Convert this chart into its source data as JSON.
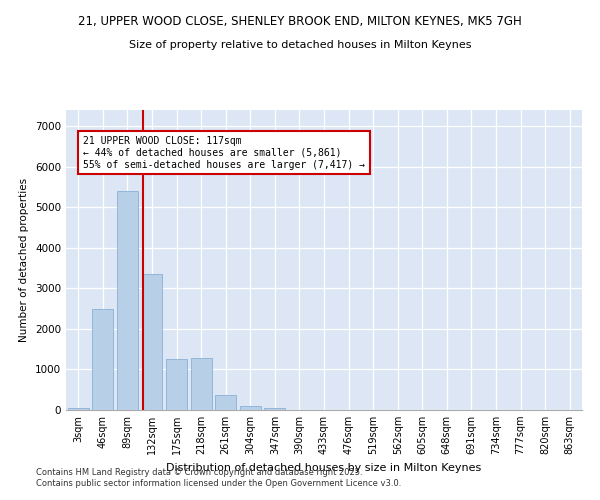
{
  "title_line1": "21, UPPER WOOD CLOSE, SHENLEY BROOK END, MILTON KEYNES, MK5 7GH",
  "title_line2": "Size of property relative to detached houses in Milton Keynes",
  "xlabel": "Distribution of detached houses by size in Milton Keynes",
  "ylabel": "Number of detached properties",
  "bin_labels": [
    "3sqm",
    "46sqm",
    "89sqm",
    "132sqm",
    "175sqm",
    "218sqm",
    "261sqm",
    "304sqm",
    "347sqm",
    "390sqm",
    "433sqm",
    "476sqm",
    "519sqm",
    "562sqm",
    "605sqm",
    "648sqm",
    "691sqm",
    "734sqm",
    "777sqm",
    "820sqm",
    "863sqm"
  ],
  "bar_values": [
    50,
    2500,
    5400,
    3350,
    1250,
    1280,
    380,
    110,
    50,
    0,
    0,
    0,
    0,
    0,
    0,
    0,
    0,
    0,
    0,
    0,
    0
  ],
  "bar_color": "#b8cfe8",
  "bar_edge_color": "#8aafd4",
  "vline_color": "#cc0000",
  "annotation_title": "21 UPPER WOOD CLOSE: 117sqm",
  "annotation_line2": "← 44% of detached houses are smaller (5,861)",
  "annotation_line3": "55% of semi-detached houses are larger (7,417) →",
  "annotation_box_color": "#cc0000",
  "ylim_max": 7400,
  "yticks": [
    0,
    1000,
    2000,
    3000,
    4000,
    5000,
    6000,
    7000
  ],
  "bg_color": "#dce6f5",
  "footer_line1": "Contains HM Land Registry data © Crown copyright and database right 2025.",
  "footer_line2": "Contains public sector information licensed under the Open Government Licence v3.0."
}
